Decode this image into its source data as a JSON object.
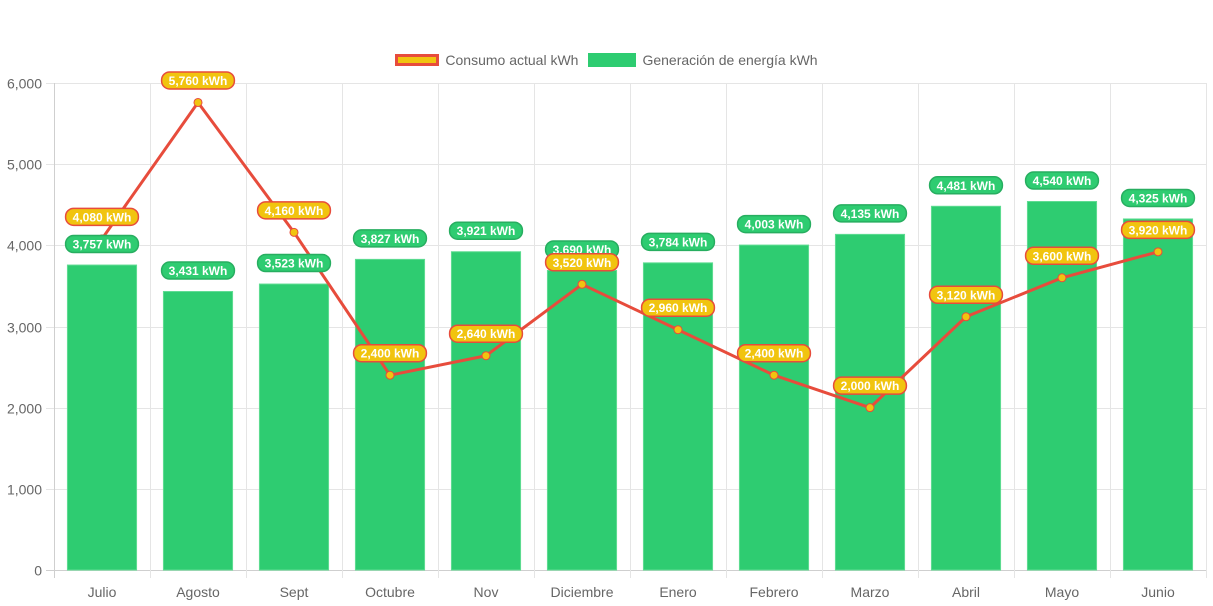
{
  "chart_data": {
    "type": "bar",
    "title": "",
    "xlabel": "",
    "ylabel": "",
    "ylim": [
      0,
      6000
    ],
    "yticks": [
      0,
      1000,
      2000,
      3000,
      4000,
      5000,
      6000
    ],
    "ytick_labels": [
      "0",
      "1,000",
      "2,000",
      "3,000",
      "4,000",
      "5,000",
      "6,000"
    ],
    "grid": true,
    "legend_position": "top-center",
    "categories": [
      "Julio",
      "Agosto",
      "Sept",
      "Octubre",
      "Nov",
      "Diciembre",
      "Enero",
      "Febrero",
      "Marzo",
      "Abril",
      "Mayo",
      "Junio"
    ],
    "series": [
      {
        "name": "Consumo actual kWh",
        "type": "line",
        "color": "#e74c3c",
        "point_color": "#f1c40f",
        "values": [
          4080,
          5760,
          4160,
          2400,
          2640,
          3520,
          2960,
          2400,
          2000,
          3120,
          3600,
          3920
        ],
        "labels": [
          "4,080 kWh",
          "5,760 kWh",
          "4,160 kWh",
          "2,400 kWh",
          "2,640 kWh",
          "3,520 kWh",
          "2,960 kWh",
          "2,400 kWh",
          "2,000 kWh",
          "3,120 kWh",
          "3,600 kWh",
          "3,920 kWh"
        ]
      },
      {
        "name": "Generación de energía kWh",
        "type": "bar",
        "color": "#2ecc71",
        "values": [
          3757,
          3431,
          3523,
          3827,
          3921,
          3690,
          3784,
          4003,
          4135,
          4481,
          4540,
          4325
        ],
        "labels": [
          "3,757 kWh",
          "3,431 kWh",
          "3,523 kWh",
          "3,827 kWh",
          "3,921 kWh",
          "3,690 kWh",
          "3,784 kWh",
          "4,003 kWh",
          "4,135 kWh",
          "4,481 kWh",
          "4,540 kWh",
          "4,325 kWh"
        ]
      }
    ]
  },
  "legend": {
    "line_label": "Consumo actual kWh",
    "bar_label": "Generación de energía kWh"
  }
}
